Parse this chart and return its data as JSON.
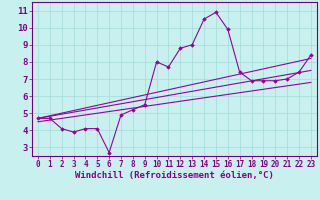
{
  "xlabel": "Windchill (Refroidissement éolien,°C)",
  "ylabel": "",
  "bg_color": "#c8f0ee",
  "plot_bg_color": "#c8f0ee",
  "line_color": "#990099",
  "marker_color": "#990099",
  "grid_color": "#aadddd",
  "axis_color": "#770077",
  "tick_color": "#880088",
  "xlim": [
    -0.5,
    23.5
  ],
  "ylim": [
    2.5,
    11.5
  ],
  "xticks": [
    0,
    1,
    2,
    3,
    4,
    5,
    6,
    7,
    8,
    9,
    10,
    11,
    12,
    13,
    14,
    15,
    16,
    17,
    18,
    19,
    20,
    21,
    22,
    23
  ],
  "yticks": [
    3,
    4,
    5,
    6,
    7,
    8,
    9,
    10,
    11
  ],
  "series1_x": [
    0,
    1,
    2,
    3,
    4,
    5,
    6,
    7,
    8,
    9,
    10,
    11,
    12,
    13,
    14,
    15,
    16,
    17,
    18,
    19,
    20,
    21,
    22,
    23
  ],
  "series1_y": [
    4.7,
    4.7,
    4.1,
    3.9,
    4.1,
    4.1,
    2.7,
    4.9,
    5.2,
    5.5,
    8.0,
    7.7,
    8.8,
    9.0,
    10.5,
    10.9,
    9.9,
    7.4,
    6.9,
    6.9,
    6.9,
    7.0,
    7.4,
    8.4
  ],
  "series2_x": [
    0,
    23
  ],
  "series2_y": [
    4.7,
    7.5
  ],
  "series3_x": [
    0,
    23
  ],
  "series3_y": [
    4.7,
    8.2
  ],
  "series4_x": [
    0,
    23
  ],
  "series4_y": [
    4.5,
    6.8
  ],
  "font_size_xlabel": 6.5,
  "font_size_yticks": 6.5,
  "font_size_xticks": 5.5
}
